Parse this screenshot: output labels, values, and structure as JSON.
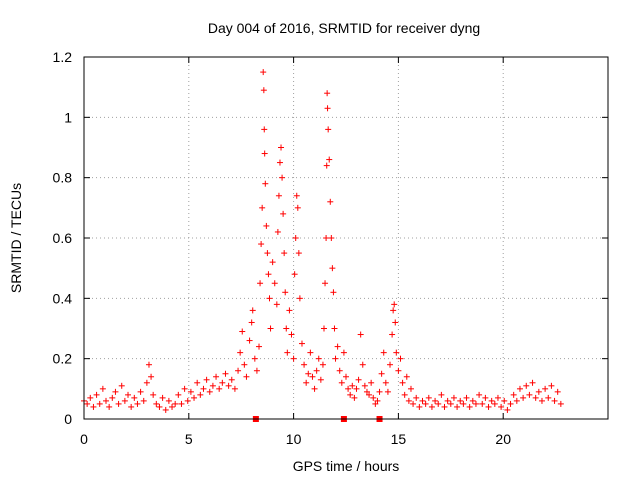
{
  "chart_data": {
    "type": "scatter",
    "title": "Day 004 of 2016, SRMTID for receiver dyng",
    "xlabel": "GPS time / hours",
    "ylabel": "SRMTID / TECUs",
    "xlim": [
      0,
      25
    ],
    "ylim": [
      0,
      1.2
    ],
    "xticks": [
      0,
      5,
      10,
      15,
      20
    ],
    "xtick_labels": [
      "0",
      "5",
      "10",
      "15",
      "20"
    ],
    "yticks": [
      0,
      0.2,
      0.4,
      0.6,
      0.8,
      1.0,
      1.2
    ],
    "ytick_labels": [
      "0",
      "0.2",
      "0.4",
      "0.6",
      "0.8",
      "1",
      "1.2"
    ],
    "grid": true,
    "marker": "plus",
    "color": "#ff0000",
    "baseline_markers": {
      "marker": "square",
      "y": 0,
      "x": [
        8.2,
        12.4,
        14.1
      ]
    },
    "series": [
      {
        "name": "SRMTID",
        "points": [
          [
            0.0,
            0.06
          ],
          [
            0.15,
            0.05
          ],
          [
            0.3,
            0.07
          ],
          [
            0.45,
            0.04
          ],
          [
            0.6,
            0.08
          ],
          [
            0.75,
            0.05
          ],
          [
            0.9,
            0.1
          ],
          [
            1.05,
            0.06
          ],
          [
            1.2,
            0.04
          ],
          [
            1.35,
            0.07
          ],
          [
            1.5,
            0.09
          ],
          [
            1.65,
            0.05
          ],
          [
            1.8,
            0.11
          ],
          [
            1.95,
            0.06
          ],
          [
            2.1,
            0.08
          ],
          [
            2.25,
            0.04
          ],
          [
            2.4,
            0.07
          ],
          [
            2.55,
            0.05
          ],
          [
            2.7,
            0.09
          ],
          [
            2.85,
            0.06
          ],
          [
            3.0,
            0.12
          ],
          [
            3.1,
            0.18
          ],
          [
            3.2,
            0.14
          ],
          [
            3.3,
            0.08
          ],
          [
            3.45,
            0.05
          ],
          [
            3.6,
            0.04
          ],
          [
            3.75,
            0.07
          ],
          [
            3.9,
            0.03
          ],
          [
            4.05,
            0.06
          ],
          [
            4.2,
            0.04
          ],
          [
            4.35,
            0.05
          ],
          [
            4.5,
            0.08
          ],
          [
            4.65,
            0.05
          ],
          [
            4.8,
            0.1
          ],
          [
            4.95,
            0.06
          ],
          [
            5.1,
            0.09
          ],
          [
            5.25,
            0.07
          ],
          [
            5.4,
            0.12
          ],
          [
            5.55,
            0.08
          ],
          [
            5.7,
            0.1
          ],
          [
            5.85,
            0.13
          ],
          [
            6.0,
            0.09
          ],
          [
            6.15,
            0.11
          ],
          [
            6.3,
            0.14
          ],
          [
            6.45,
            0.1
          ],
          [
            6.6,
            0.12
          ],
          [
            6.75,
            0.15
          ],
          [
            6.9,
            0.11
          ],
          [
            7.05,
            0.13
          ],
          [
            7.2,
            0.1
          ],
          [
            7.35,
            0.16
          ],
          [
            7.45,
            0.22
          ],
          [
            7.55,
            0.29
          ],
          [
            7.65,
            0.18
          ],
          [
            7.75,
            0.14
          ],
          [
            7.9,
            0.26
          ],
          [
            8.0,
            0.32
          ],
          [
            8.05,
            0.36
          ],
          [
            8.15,
            0.2
          ],
          [
            8.25,
            0.16
          ],
          [
            8.35,
            0.24
          ],
          [
            8.4,
            0.45
          ],
          [
            8.45,
            0.58
          ],
          [
            8.5,
            0.7
          ],
          [
            8.55,
            1.15
          ],
          [
            8.58,
            1.09
          ],
          [
            8.6,
            0.96
          ],
          [
            8.62,
            0.88
          ],
          [
            8.65,
            0.78
          ],
          [
            8.7,
            0.64
          ],
          [
            8.75,
            0.55
          ],
          [
            8.8,
            0.48
          ],
          [
            8.85,
            0.4
          ],
          [
            8.9,
            0.3
          ],
          [
            9.0,
            0.52
          ],
          [
            9.1,
            0.45
          ],
          [
            9.2,
            0.38
          ],
          [
            9.25,
            0.62
          ],
          [
            9.3,
            0.74
          ],
          [
            9.35,
            0.85
          ],
          [
            9.4,
            0.9
          ],
          [
            9.45,
            0.8
          ],
          [
            9.5,
            0.68
          ],
          [
            9.55,
            0.55
          ],
          [
            9.6,
            0.42
          ],
          [
            9.65,
            0.3
          ],
          [
            9.7,
            0.22
          ],
          [
            9.8,
            0.36
          ],
          [
            9.9,
            0.28
          ],
          [
            10.0,
            0.2
          ],
          [
            10.05,
            0.48
          ],
          [
            10.1,
            0.6
          ],
          [
            10.15,
            0.74
          ],
          [
            10.2,
            0.7
          ],
          [
            10.25,
            0.55
          ],
          [
            10.3,
            0.4
          ],
          [
            10.4,
            0.25
          ],
          [
            10.5,
            0.18
          ],
          [
            10.6,
            0.12
          ],
          [
            10.7,
            0.15
          ],
          [
            10.8,
            0.22
          ],
          [
            10.9,
            0.14
          ],
          [
            11.0,
            0.1
          ],
          [
            11.1,
            0.16
          ],
          [
            11.2,
            0.2
          ],
          [
            11.3,
            0.13
          ],
          [
            11.4,
            0.18
          ],
          [
            11.45,
            0.3
          ],
          [
            11.5,
            0.45
          ],
          [
            11.55,
            0.6
          ],
          [
            11.58,
            0.84
          ],
          [
            11.6,
            1.08
          ],
          [
            11.62,
            1.03
          ],
          [
            11.65,
            0.96
          ],
          [
            11.7,
            0.86
          ],
          [
            11.75,
            0.72
          ],
          [
            11.8,
            0.6
          ],
          [
            11.85,
            0.5
          ],
          [
            11.9,
            0.42
          ],
          [
            11.95,
            0.3
          ],
          [
            12.0,
            0.2
          ],
          [
            12.1,
            0.24
          ],
          [
            12.2,
            0.16
          ],
          [
            12.3,
            0.12
          ],
          [
            12.4,
            0.22
          ],
          [
            12.5,
            0.14
          ],
          [
            12.6,
            0.1
          ],
          [
            12.7,
            0.08
          ],
          [
            12.8,
            0.11
          ],
          [
            12.9,
            0.07
          ],
          [
            13.0,
            0.1
          ],
          [
            13.1,
            0.13
          ],
          [
            13.2,
            0.28
          ],
          [
            13.3,
            0.18
          ],
          [
            13.4,
            0.11
          ],
          [
            13.5,
            0.09
          ],
          [
            13.6,
            0.08
          ],
          [
            13.7,
            0.12
          ],
          [
            13.8,
            0.07
          ],
          [
            13.9,
            0.05
          ],
          [
            14.0,
            0.06
          ],
          [
            14.1,
            0.09
          ],
          [
            14.2,
            0.15
          ],
          [
            14.3,
            0.22
          ],
          [
            14.4,
            0.12
          ],
          [
            14.5,
            0.09
          ],
          [
            14.6,
            0.18
          ],
          [
            14.7,
            0.28
          ],
          [
            14.75,
            0.36
          ],
          [
            14.8,
            0.38
          ],
          [
            14.85,
            0.32
          ],
          [
            14.9,
            0.22
          ],
          [
            15.0,
            0.16
          ],
          [
            15.1,
            0.2
          ],
          [
            15.2,
            0.12
          ],
          [
            15.3,
            0.08
          ],
          [
            15.4,
            0.14
          ],
          [
            15.5,
            0.06
          ],
          [
            15.6,
            0.1
          ],
          [
            15.7,
            0.05
          ],
          [
            15.85,
            0.07
          ],
          [
            16.0,
            0.04
          ],
          [
            16.15,
            0.06
          ],
          [
            16.3,
            0.05
          ],
          [
            16.45,
            0.07
          ],
          [
            16.6,
            0.04
          ],
          [
            16.75,
            0.06
          ],
          [
            16.9,
            0.05
          ],
          [
            17.05,
            0.08
          ],
          [
            17.2,
            0.04
          ],
          [
            17.35,
            0.06
          ],
          [
            17.5,
            0.05
          ],
          [
            17.65,
            0.07
          ],
          [
            17.8,
            0.04
          ],
          [
            17.95,
            0.06
          ],
          [
            18.1,
            0.05
          ],
          [
            18.25,
            0.07
          ],
          [
            18.4,
            0.04
          ],
          [
            18.55,
            0.06
          ],
          [
            18.7,
            0.05
          ],
          [
            18.85,
            0.08
          ],
          [
            19.0,
            0.05
          ],
          [
            19.15,
            0.07
          ],
          [
            19.3,
            0.04
          ],
          [
            19.45,
            0.06
          ],
          [
            19.6,
            0.05
          ],
          [
            19.75,
            0.07
          ],
          [
            19.9,
            0.04
          ],
          [
            20.05,
            0.06
          ],
          [
            20.2,
            0.03
          ],
          [
            20.35,
            0.05
          ],
          [
            20.5,
            0.08
          ],
          [
            20.65,
            0.06
          ],
          [
            20.8,
            0.1
          ],
          [
            20.95,
            0.07
          ],
          [
            21.1,
            0.11
          ],
          [
            21.25,
            0.08
          ],
          [
            21.4,
            0.12
          ],
          [
            21.55,
            0.07
          ],
          [
            21.7,
            0.09
          ],
          [
            21.85,
            0.06
          ],
          [
            22.0,
            0.1
          ],
          [
            22.15,
            0.07
          ],
          [
            22.3,
            0.11
          ],
          [
            22.45,
            0.06
          ],
          [
            22.6,
            0.09
          ],
          [
            22.75,
            0.05
          ]
        ]
      }
    ]
  }
}
